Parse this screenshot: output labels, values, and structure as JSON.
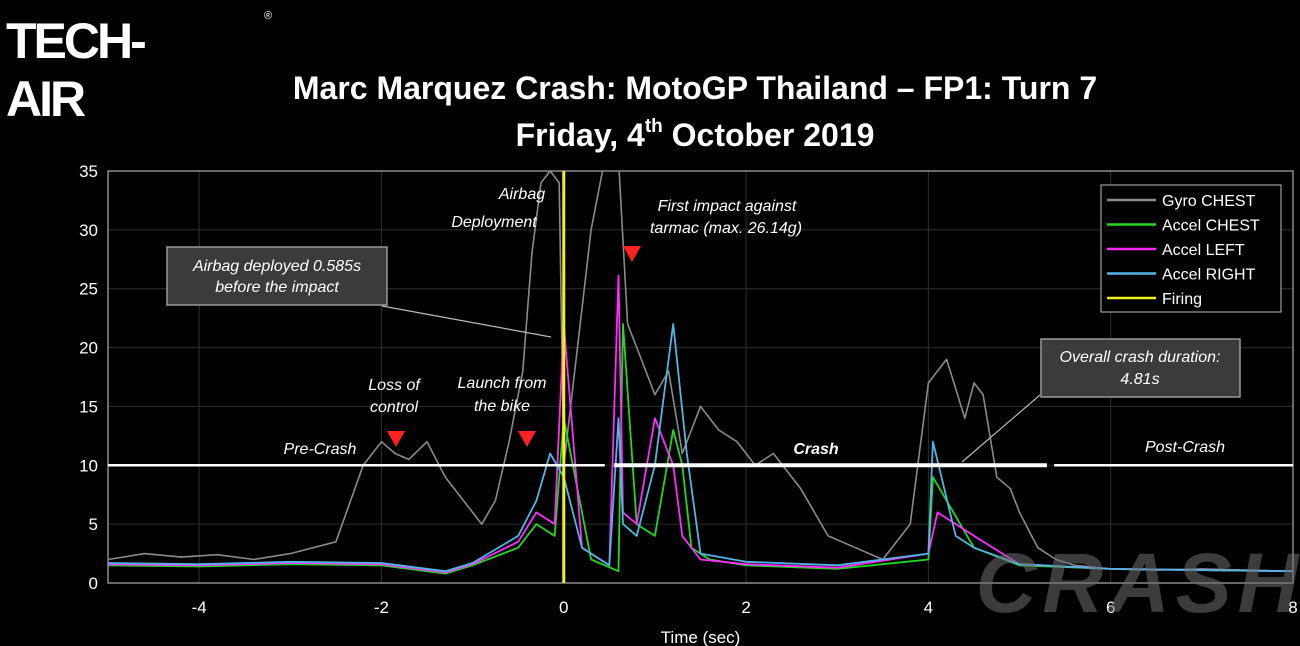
{
  "logo": {
    "text": "TECH-AIR",
    "reg": "®"
  },
  "header": {
    "title": "Marc Marquez Crash: MotoGP Thailand – FP1: Turn 7",
    "subtitle_prefix": "Friday, 4",
    "subtitle_sup": "th",
    "subtitle_suffix": " October 2019"
  },
  "watermark": "CRASH",
  "colors": {
    "gyro": "#8a8a8a",
    "accel_chest": "#1fd81f",
    "accel_left": "#ff2bff",
    "accel_right": "#4fb6e6",
    "firing": "#f2f21a",
    "phase_line": "#ffffff",
    "arrow": "#ff2020"
  },
  "chart_data": {
    "type": "line",
    "xlabel": "Time (sec)",
    "ylabel": "",
    "xlim": [
      -5,
      8
    ],
    "ylim": [
      0,
      35
    ],
    "x_ticks": [
      -4,
      -2,
      0,
      2,
      4,
      6,
      8
    ],
    "y_ticks": [
      0,
      5,
      10,
      15,
      20,
      25,
      30,
      35
    ],
    "grid": true,
    "legend_position": "top-right",
    "series": [
      {
        "name": "Gyro CHEST",
        "key": "gyro",
        "x": [
          -5,
          -4.6,
          -4.2,
          -3.8,
          -3.4,
          -3,
          -2.5,
          -2.2,
          -2.0,
          -1.85,
          -1.7,
          -1.5,
          -1.3,
          -1.1,
          -0.9,
          -0.75,
          -0.6,
          -0.45,
          -0.35,
          -0.25,
          -0.15,
          -0.05,
          0,
          0.3,
          0.5,
          0.6,
          0.7,
          0.85,
          1.0,
          1.15,
          1.3,
          1.5,
          1.7,
          1.9,
          2.1,
          2.3,
          2.6,
          2.9,
          3.2,
          3.5,
          3.8,
          4.0,
          4.2,
          4.4,
          4.5,
          4.6,
          4.75,
          4.9,
          5.0,
          5.2,
          5.4,
          5.6,
          6.0,
          6.5,
          7.0,
          7.5,
          8
        ],
        "y": [
          2,
          2.5,
          2.2,
          2.4,
          2.0,
          2.5,
          3.5,
          10,
          12,
          11,
          10.5,
          12,
          9,
          7,
          5,
          7,
          12,
          18,
          28,
          34,
          35,
          34,
          10,
          30,
          38,
          36,
          22,
          19,
          16,
          18,
          11,
          15,
          13,
          12,
          10,
          11,
          8,
          4,
          3,
          2,
          5,
          17,
          19,
          14,
          17,
          16,
          9,
          8,
          6,
          3,
          2,
          1.5,
          1.2,
          1.1,
          1.2,
          1.1,
          1.0
        ]
      },
      {
        "name": "Accel CHEST",
        "key": "accel_chest",
        "x": [
          -5,
          -4,
          -3,
          -2,
          -1.3,
          -1,
          -0.5,
          -0.3,
          -0.1,
          0,
          0.3,
          0.6,
          0.65,
          0.8,
          1.0,
          1.2,
          1.3,
          1.4,
          1.6,
          2,
          3,
          4,
          4.05,
          4.5,
          5,
          6,
          7,
          8
        ],
        "y": [
          1.5,
          1.4,
          1.6,
          1.5,
          0.8,
          1.5,
          3,
          5,
          4,
          14,
          2,
          1,
          22,
          5,
          4,
          13,
          10,
          3,
          2,
          1.5,
          1.2,
          2,
          9,
          3,
          1.5,
          1.2,
          1.1,
          1.0
        ]
      },
      {
        "name": "Accel LEFT",
        "key": "accel_left",
        "x": [
          -5,
          -4,
          -3,
          -2,
          -1.3,
          -1,
          -0.5,
          -0.3,
          -0.1,
          0,
          0.2,
          0.5,
          0.6,
          0.65,
          0.8,
          1.0,
          1.2,
          1.3,
          1.5,
          2,
          3,
          4,
          4.1,
          4.5,
          5,
          6,
          7,
          8
        ],
        "y": [
          1.6,
          1.5,
          1.7,
          1.6,
          0.9,
          1.6,
          3.5,
          6,
          5,
          22,
          3,
          1.5,
          26.14,
          6,
          5,
          14,
          10,
          4,
          2,
          1.6,
          1.3,
          2.5,
          6,
          4,
          1.6,
          1.2,
          1.1,
          1.0
        ]
      },
      {
        "name": "Accel RIGHT",
        "key": "accel_right",
        "x": [
          -5,
          -4,
          -3,
          -2,
          -1.3,
          -1,
          -0.5,
          -0.3,
          -0.15,
          0,
          0.2,
          0.5,
          0.6,
          0.65,
          0.8,
          1.0,
          1.2,
          1.35,
          1.5,
          2,
          3,
          4,
          4.05,
          4.3,
          4.5,
          5,
          6,
          7,
          8
        ],
        "y": [
          1.7,
          1.6,
          1.8,
          1.7,
          1.0,
          1.7,
          4,
          7,
          11,
          9,
          3,
          1.5,
          14,
          5,
          4,
          10,
          22,
          11,
          2.5,
          1.8,
          1.5,
          2.5,
          12,
          4,
          3,
          1.6,
          1.2,
          1.1,
          1.0
        ]
      },
      {
        "name": "Firing",
        "key": "firing",
        "x": [
          0,
          0
        ],
        "y": [
          0,
          35
        ]
      }
    ],
    "phases": [
      {
        "label": "Pre-Crash",
        "x0": -5,
        "x1": 0.45,
        "y": 10,
        "bold": false
      },
      {
        "label": "Crash",
        "x0": 0.55,
        "x1": 5.3,
        "y": 10,
        "bold": true
      },
      {
        "label": "Post-Crash",
        "x0": 5.38,
        "x1": 8,
        "y": 10,
        "bold": false
      }
    ],
    "annotations": [
      {
        "lines": [
          "Airbag",
          "Deployment"
        ],
        "color": "#f2f21a"
      },
      {
        "lines": [
          "First impact against",
          "tarmac (max. 26.14g)"
        ]
      },
      {
        "lines": [
          "Loss of",
          "control"
        ]
      },
      {
        "lines": [
          "Launch from",
          "the bike"
        ]
      }
    ],
    "notes": [
      {
        "lines": [
          "Airbag deployed 0.585s",
          "before the impact"
        ]
      },
      {
        "lines": [
          "Overall crash duration:",
          "4.81s"
        ]
      }
    ]
  }
}
